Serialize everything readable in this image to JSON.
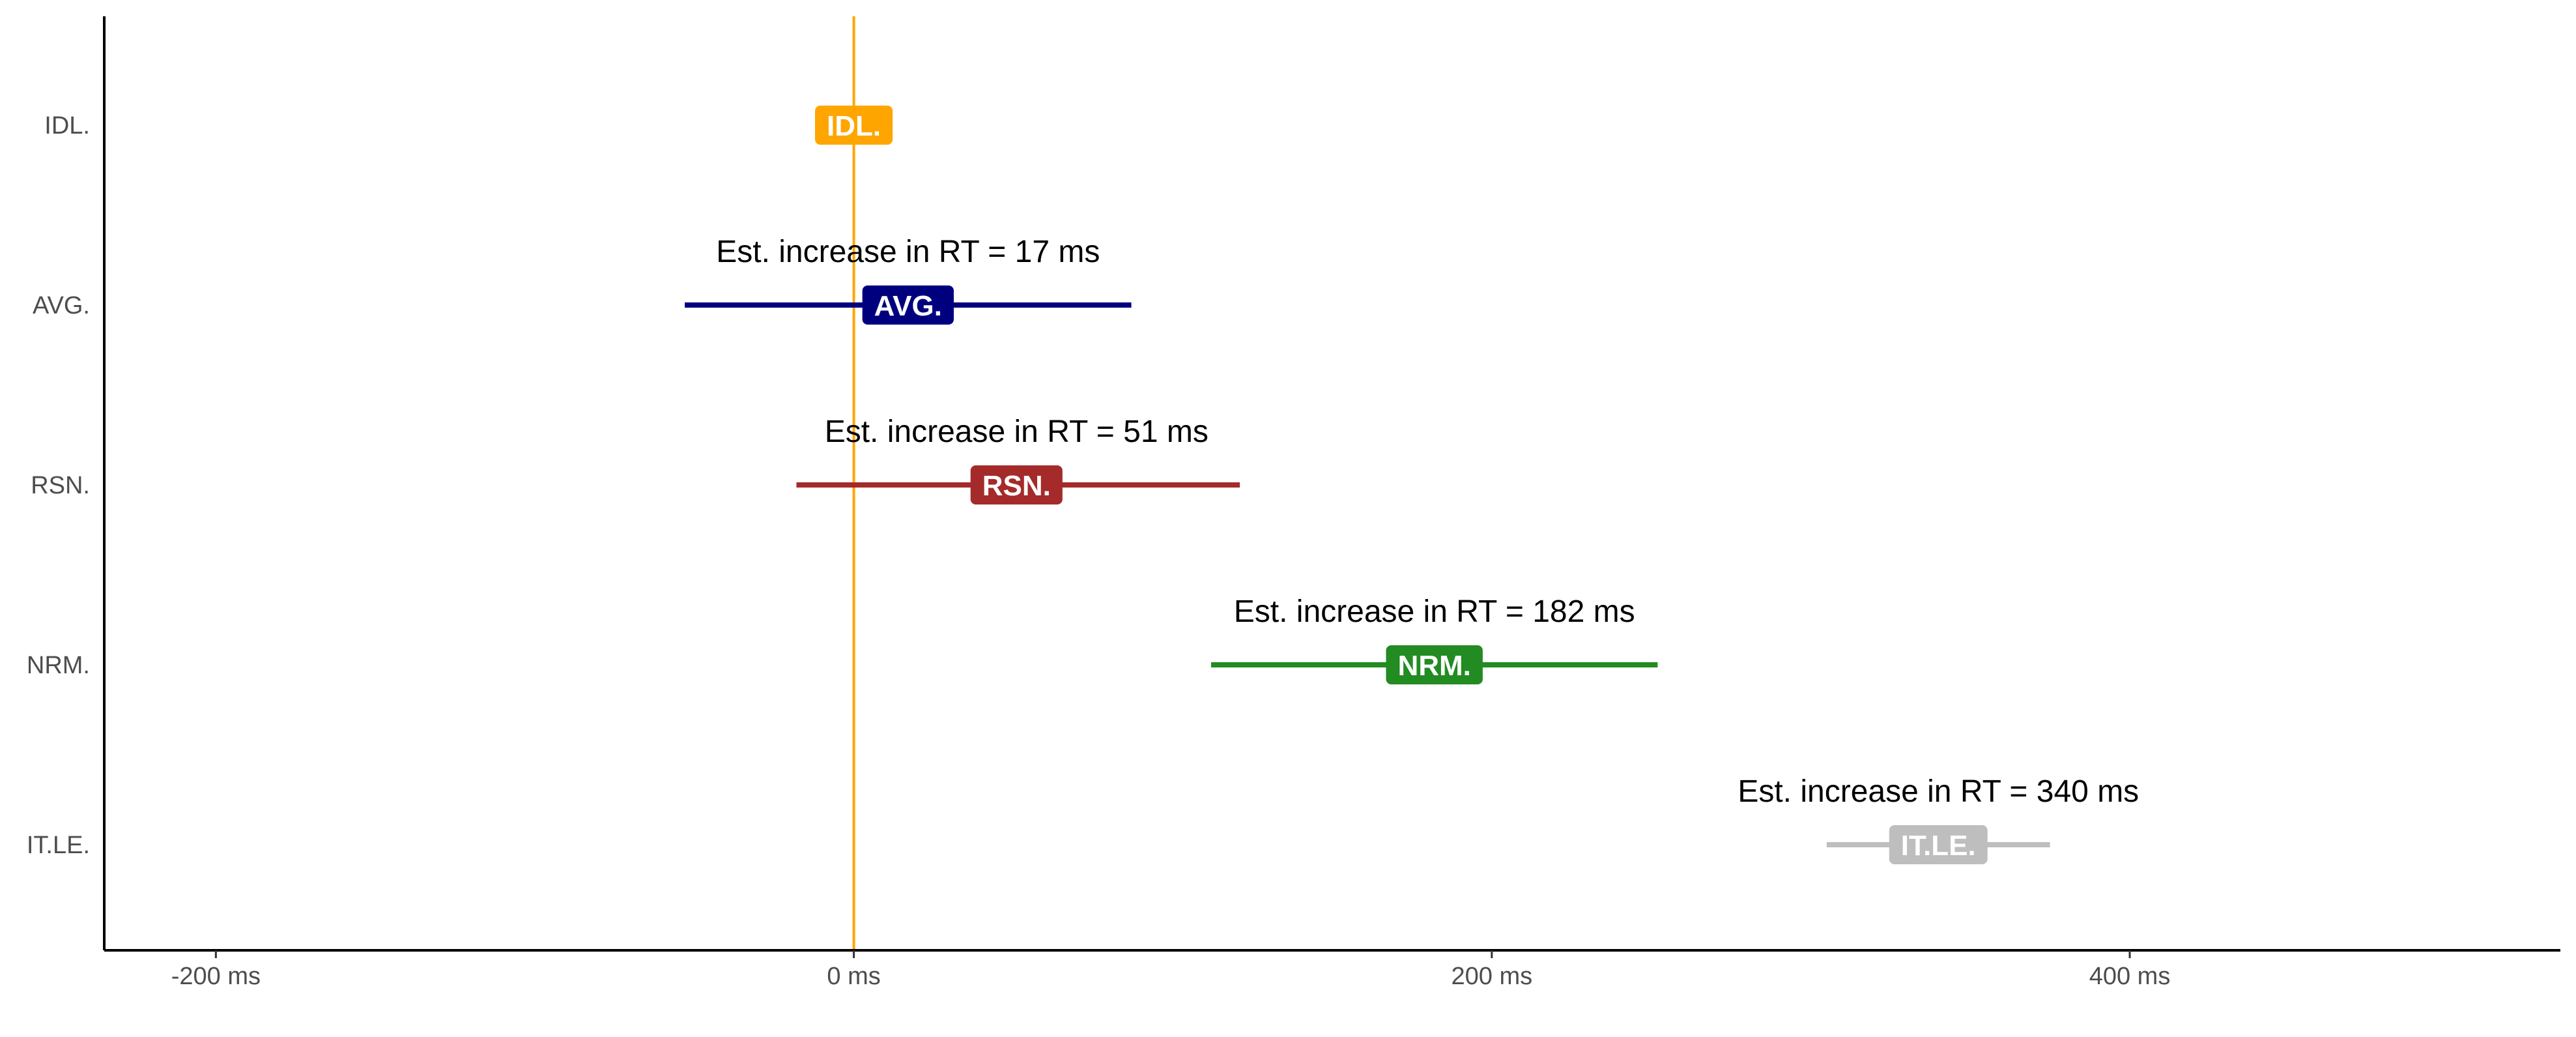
{
  "chart_data": {
    "type": "interval",
    "title": "",
    "xlabel": "",
    "ylabel": "",
    "xlim": [
      -235,
      535
    ],
    "x_ticks": [
      {
        "value": -200,
        "label": "-200 ms"
      },
      {
        "value": 0,
        "label": "0 ms"
      },
      {
        "value": 200,
        "label": "200 ms"
      },
      {
        "value": 400,
        "label": "400 ms"
      }
    ],
    "reference_line": {
      "x": 0,
      "color": "#FFA500"
    },
    "grid": false,
    "series": [
      {
        "label": "IDL.",
        "pill": "IDL.",
        "estimate": 0,
        "low": 0,
        "high": 0,
        "color": "#FFA500",
        "annotation": ""
      },
      {
        "label": "AVG.",
        "pill": "AVG.",
        "estimate": 17,
        "low": -53,
        "high": 87,
        "color": "#00007F",
        "annotation": "Est. increase in RT = 17 ms"
      },
      {
        "label": "RSN.",
        "pill": "RSN.",
        "estimate": 51,
        "low": -18,
        "high": 121,
        "color": "#A52A2A",
        "annotation": "Est. increase in RT = 51 ms"
      },
      {
        "label": "NRM.",
        "pill": "NRM.",
        "estimate": 182,
        "low": 112,
        "high": 252,
        "color": "#228B22",
        "annotation": "Est. increase in RT = 182 ms"
      },
      {
        "label": "IT.LE.",
        "pill": "IT.LE.",
        "estimate": 340,
        "low": 305,
        "high": 375,
        "color": "#BEBEBE",
        "annotation": "Est. increase in RT = 340 ms"
      }
    ]
  }
}
